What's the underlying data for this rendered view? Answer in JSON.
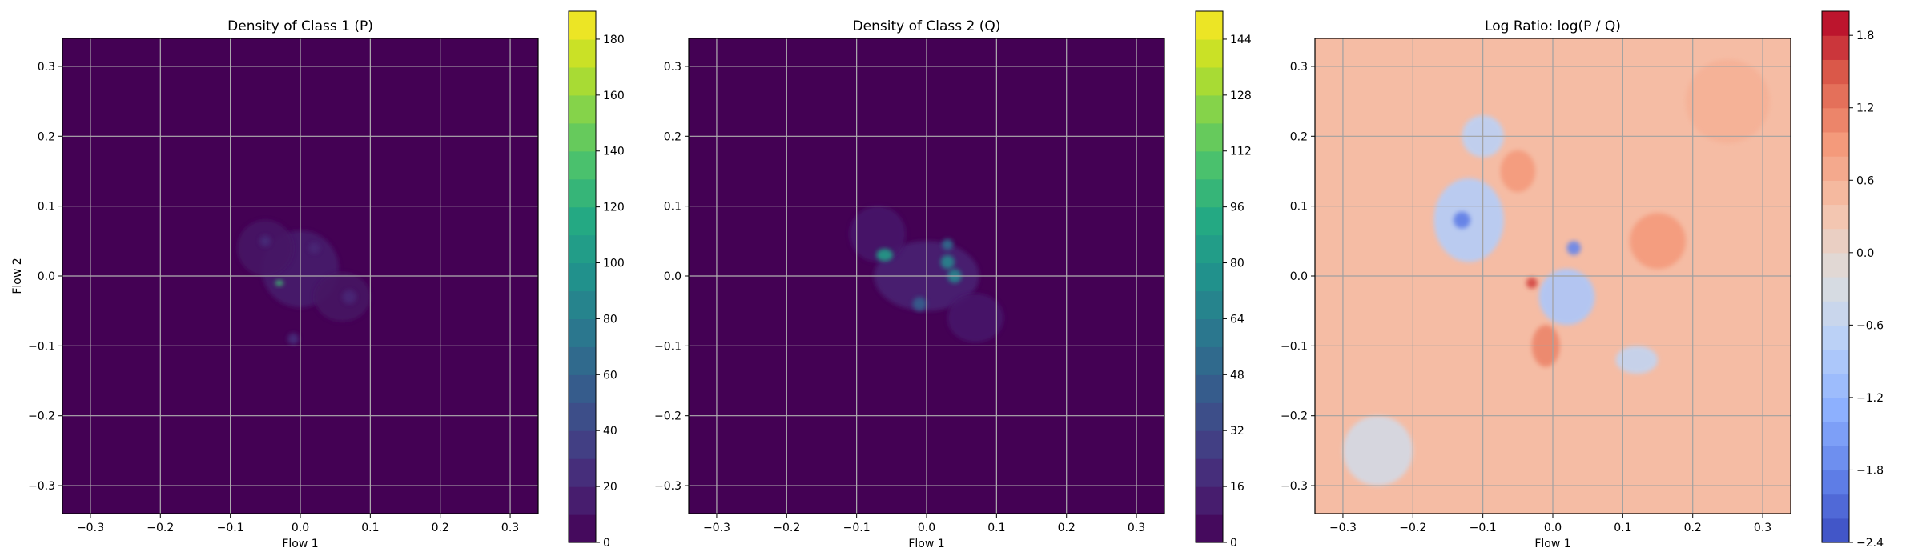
{
  "chart_data": [
    {
      "type": "heatmap",
      "title": "Density of Class 1 (P)",
      "xlabel": "Flow 1",
      "ylabel": "Flow 2",
      "xlim": [
        -0.34,
        0.34
      ],
      "ylim": [
        -0.34,
        0.34
      ],
      "xticks": [
        "−0.3",
        "−0.2",
        "−0.1",
        "0.0",
        "0.1",
        "0.2",
        "0.3"
      ],
      "yticks": [
        "−0.3",
        "−0.2",
        "−0.1",
        "0.0",
        "0.1",
        "0.2",
        "0.3"
      ],
      "grid": true,
      "colormap": "viridis",
      "background_color": "#440154",
      "colorbar": {
        "min": 0,
        "max": 190,
        "levels": 19,
        "ticks": [
          0,
          20,
          40,
          60,
          80,
          100,
          120,
          140,
          160,
          180
        ]
      },
      "blobs": [
        {
          "x": -0.03,
          "y": -0.01,
          "sx": 0.006,
          "sy": 0.004,
          "value": 130
        },
        {
          "x": 0.0,
          "y": 0.01,
          "sx": 0.055,
          "sy": 0.055,
          "value": 14
        },
        {
          "x": -0.05,
          "y": 0.04,
          "sx": 0.04,
          "sy": 0.04,
          "value": 10
        },
        {
          "x": 0.06,
          "y": -0.03,
          "sx": 0.04,
          "sy": 0.035,
          "value": 9
        },
        {
          "x": -0.01,
          "y": -0.09,
          "sx": 0.008,
          "sy": 0.008,
          "value": 25
        },
        {
          "x": -0.05,
          "y": 0.05,
          "sx": 0.008,
          "sy": 0.008,
          "value": 22
        },
        {
          "x": 0.07,
          "y": -0.03,
          "sx": 0.01,
          "sy": 0.01,
          "value": 20
        },
        {
          "x": 0.02,
          "y": 0.04,
          "sx": 0.008,
          "sy": 0.008,
          "value": 20
        }
      ]
    },
    {
      "type": "heatmap",
      "title": "Density of Class 2 (Q)",
      "xlabel": "Flow 1",
      "ylabel": "",
      "xlim": [
        -0.34,
        0.34
      ],
      "ylim": [
        -0.34,
        0.34
      ],
      "xticks": [
        "−0.3",
        "−0.2",
        "−0.1",
        "0.0",
        "0.1",
        "0.2",
        "0.3"
      ],
      "yticks": [
        "−0.3",
        "−0.2",
        "−0.1",
        "0.0",
        "0.1",
        "0.2",
        "0.3"
      ],
      "grid": true,
      "colormap": "viridis",
      "background_color": "#440154",
      "colorbar": {
        "min": 0,
        "max": 152,
        "levels": 19,
        "ticks": [
          0,
          16,
          32,
          48,
          64,
          80,
          96,
          112,
          128,
          144
        ]
      },
      "blobs": [
        {
          "x": -0.06,
          "y": 0.03,
          "sx": 0.012,
          "sy": 0.009,
          "value": 85
        },
        {
          "x": 0.03,
          "y": 0.02,
          "sx": 0.01,
          "sy": 0.01,
          "value": 70
        },
        {
          "x": 0.04,
          "y": 0.0,
          "sx": 0.01,
          "sy": 0.01,
          "value": 70
        },
        {
          "x": 0.03,
          "y": 0.045,
          "sx": 0.008,
          "sy": 0.008,
          "value": 55
        },
        {
          "x": -0.01,
          "y": -0.04,
          "sx": 0.01,
          "sy": 0.01,
          "value": 45
        },
        {
          "x": 0.0,
          "y": 0.0,
          "sx": 0.075,
          "sy": 0.05,
          "value": 14
        },
        {
          "x": -0.07,
          "y": 0.06,
          "sx": 0.04,
          "sy": 0.04,
          "value": 10
        },
        {
          "x": 0.07,
          "y": -0.06,
          "sx": 0.04,
          "sy": 0.035,
          "value": 10
        }
      ]
    },
    {
      "type": "heatmap",
      "title": "Log Ratio: log(P / Q)",
      "xlabel": "Flow 1",
      "ylabel": "",
      "xlim": [
        -0.34,
        0.34
      ],
      "ylim": [
        -0.34,
        0.34
      ],
      "xticks": [
        "−0.3",
        "−0.2",
        "−0.1",
        "0.0",
        "0.1",
        "0.2",
        "0.3"
      ],
      "yticks": [
        "−0.3",
        "−0.2",
        "−0.1",
        "0.0",
        "0.1",
        "0.2",
        "0.3"
      ],
      "grid": true,
      "colormap": "coolwarm",
      "background_value": 0.45,
      "colorbar": {
        "min": -2.4,
        "max": 2.0,
        "levels": 22,
        "ticks": [
          "−2.4",
          "−1.8",
          "−1.2",
          "−0.6",
          "0.0",
          "0.6",
          "1.2",
          "1.8"
        ]
      },
      "blobs": [
        {
          "x": -0.13,
          "y": 0.08,
          "sx": 0.012,
          "sy": 0.012,
          "value": -1.9
        },
        {
          "x": -0.12,
          "y": 0.08,
          "sx": 0.05,
          "sy": 0.06,
          "value": -0.8
        },
        {
          "x": -0.1,
          "y": 0.2,
          "sx": 0.03,
          "sy": 0.03,
          "value": -0.7
        },
        {
          "x": 0.03,
          "y": 0.04,
          "sx": 0.01,
          "sy": 0.01,
          "value": -1.8
        },
        {
          "x": 0.02,
          "y": -0.03,
          "sx": 0.04,
          "sy": 0.04,
          "value": -0.9
        },
        {
          "x": 0.12,
          "y": -0.12,
          "sx": 0.03,
          "sy": 0.02,
          "value": -0.6
        },
        {
          "x": 0.15,
          "y": 0.05,
          "sx": 0.04,
          "sy": 0.04,
          "value": 0.9
        },
        {
          "x": -0.05,
          "y": 0.15,
          "sx": 0.025,
          "sy": 0.03,
          "value": 0.9
        },
        {
          "x": -0.03,
          "y": -0.01,
          "sx": 0.008,
          "sy": 0.008,
          "value": 1.6
        },
        {
          "x": -0.01,
          "y": -0.1,
          "sx": 0.02,
          "sy": 0.03,
          "value": 1.1
        },
        {
          "x": -0.25,
          "y": -0.25,
          "sx": 0.05,
          "sy": 0.05,
          "value": -0.35
        },
        {
          "x": 0.25,
          "y": 0.25,
          "sx": 0.06,
          "sy": 0.06,
          "value": 0.6
        }
      ]
    }
  ]
}
